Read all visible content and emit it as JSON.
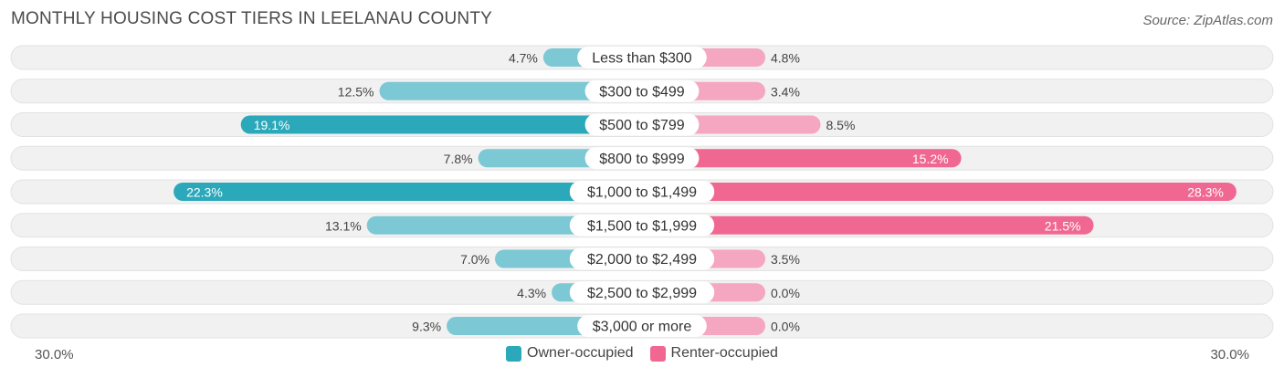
{
  "chart_data": {
    "type": "bar",
    "orientation": "horizontal-diverging",
    "title": "MONTHLY HOUSING COST TIERS IN LEELANAU COUNTY",
    "source": "Source: ZipAtlas.com",
    "categories": [
      "Less than $300",
      "$300 to $499",
      "$500 to $799",
      "$800 to $999",
      "$1,000 to $1,499",
      "$1,500 to $1,999",
      "$2,000 to $2,499",
      "$2,500 to $2,999",
      "$3,000 or more"
    ],
    "series": [
      {
        "name": "Owner-occupied",
        "values": [
          4.7,
          12.5,
          19.1,
          7.8,
          22.3,
          13.1,
          7.0,
          4.3,
          9.3
        ],
        "labels": [
          "4.7%",
          "12.5%",
          "19.1%",
          "7.8%",
          "22.3%",
          "13.1%",
          "7.0%",
          "4.3%",
          "9.3%"
        ]
      },
      {
        "name": "Renter-occupied",
        "values": [
          4.8,
          3.4,
          8.5,
          15.2,
          28.3,
          21.5,
          3.5,
          0.0,
          0.0
        ],
        "labels": [
          "4.8%",
          "3.4%",
          "8.5%",
          "15.2%",
          "28.3%",
          "21.5%",
          "3.5%",
          "0.0%",
          "0.0%"
        ]
      }
    ],
    "xlim": [
      -30,
      30
    ],
    "axis_left_label": "30.0%",
    "axis_right_label": "30.0%",
    "colors": {
      "owner_light": "#7cc8d4",
      "owner_dark": "#2ba8ba",
      "renter_light": "#f5a6c0",
      "renter_dark": "#f06792",
      "row_bg": "#f1f1f1"
    }
  }
}
